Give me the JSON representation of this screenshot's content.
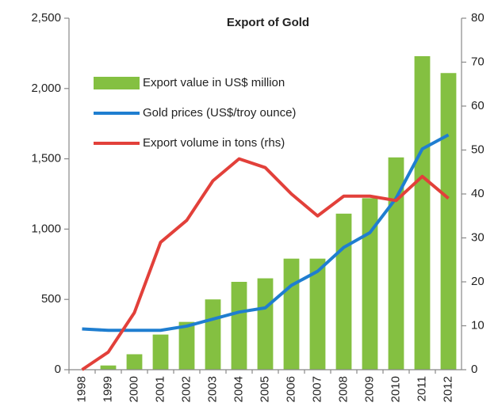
{
  "chart_data": {
    "type": "bar",
    "title": "Export of Gold",
    "categories": [
      "1998",
      "1999",
      "2000",
      "2001",
      "2002",
      "2003",
      "2004",
      "2005",
      "2006",
      "2007",
      "2008",
      "2009",
      "2010",
      "2011",
      "2012"
    ],
    "series": [
      {
        "name": "Export value in US$ million",
        "type": "bar",
        "color": "#84c041",
        "values": [
          0,
          30,
          110,
          250,
          340,
          500,
          625,
          650,
          790,
          790,
          1110,
          1220,
          1510,
          2230,
          2110
        ]
      },
      {
        "name": "Gold prices (US$/troy ounce)",
        "type": "line",
        "color": "#1f7ed0",
        "values": [
          290,
          280,
          280,
          280,
          310,
          360,
          410,
          440,
          600,
          700,
          870,
          975,
          1220,
          1570,
          1670
        ]
      },
      {
        "name": "Export volume in tons (rhs)",
        "type": "line",
        "axis": "y2",
        "color": "#e2403a",
        "values": [
          0,
          4,
          13,
          29,
          34,
          43,
          48,
          46,
          40,
          35,
          39.5,
          39.5,
          38.5,
          44,
          39
        ]
      }
    ],
    "ylim": [
      0,
      2500
    ],
    "yticks": [
      0,
      500,
      {
        "value": 1000,
        "label": "1,000"
      },
      {
        "value": 1500,
        "label": "1,500"
      },
      {
        "value": 2000,
        "label": "2,000"
      },
      {
        "value": 2500,
        "label": "2,500"
      }
    ],
    "y2lim": [
      0,
      80
    ],
    "y2ticks": [
      0,
      10,
      20,
      30,
      40,
      50,
      60,
      70,
      80
    ],
    "legend": "upper left"
  }
}
